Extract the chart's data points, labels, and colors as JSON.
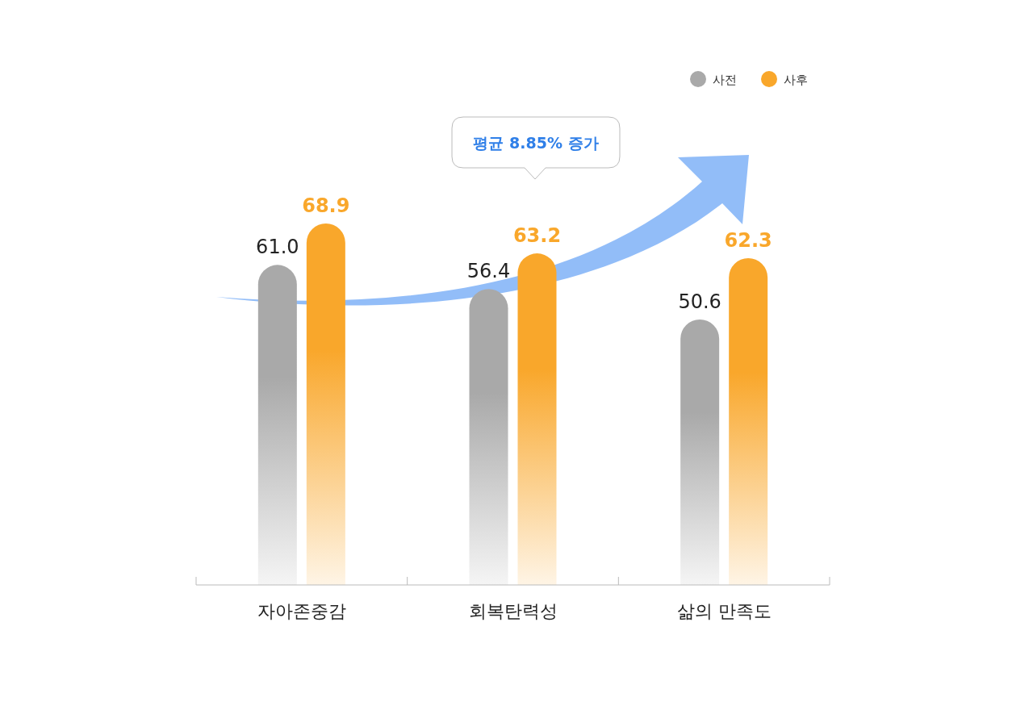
{
  "chart_data": {
    "type": "bar",
    "categories": [
      "자아존중감",
      "회복탄력성",
      "삶의 만족도"
    ],
    "series": [
      {
        "name": "사전",
        "color": "#a9a9a9",
        "values": [
          61.0,
          56.4,
          50.6
        ],
        "value_labels": [
          "61.0",
          "56.4",
          "50.6"
        ]
      },
      {
        "name": "사후",
        "color": "#f9a72b",
        "values": [
          68.9,
          63.2,
          62.3
        ],
        "value_labels": [
          "68.9",
          "63.2",
          "62.3"
        ]
      }
    ],
    "legend": "top right",
    "annotations": [
      "평균 8.85% 증가"
    ]
  }
}
